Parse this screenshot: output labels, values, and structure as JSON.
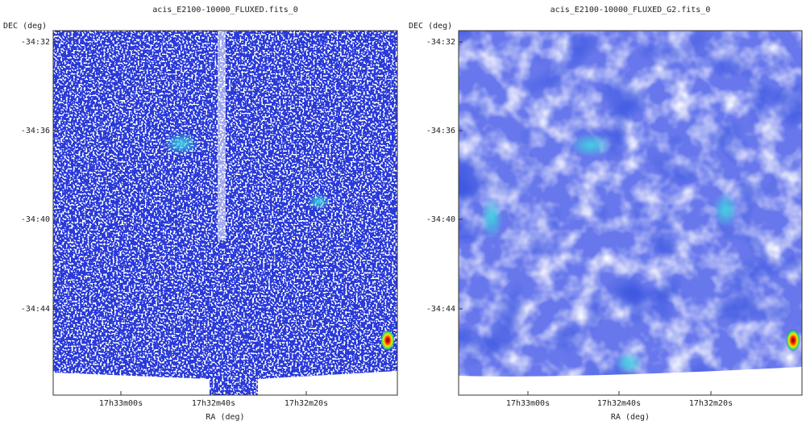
{
  "panels": [
    {
      "title": "acis_E2100-10000_FLUXED.fits_0",
      "y_axis_label": "DEC (deg)",
      "x_axis_label": "RA (deg)",
      "y_ticks": [
        "-34:32",
        "-34:36",
        "-34:40",
        "-34:44"
      ],
      "x_ticks": [
        "17h33m00s",
        "17h32m40s",
        "17h32m20s"
      ]
    },
    {
      "title": "acis_E2100-10000_FLUXED_G2.fits_0",
      "y_axis_label": "DEC (deg)",
      "x_axis_label": "RA (deg)",
      "y_ticks": [
        "-34:32",
        "-34:36",
        "-34:40",
        "-34:44"
      ],
      "x_ticks": [
        "17h33m00s",
        "17h32m40s",
        "17h32m20s"
      ]
    }
  ]
}
